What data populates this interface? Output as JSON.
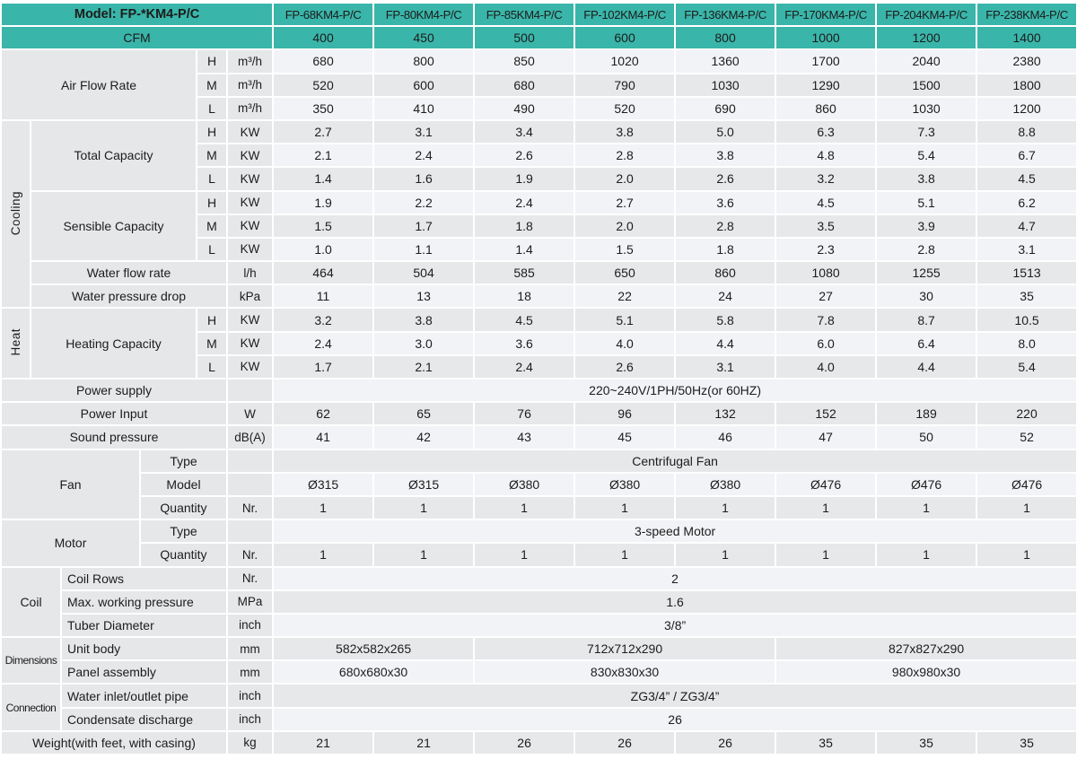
{
  "colors": {
    "header_teal": "#3ab5a9",
    "row_light": "#f1f3f6",
    "row_dark": "#e6e8ea",
    "label_gray": "#e5e7e9"
  },
  "header": {
    "model_label": "Model: FP-*KM4-P/C",
    "models": [
      "FP-68KM4-P/C",
      "FP-80KM4-P/C",
      "FP-85KM4-P/C",
      "FP-102KM4-P/C",
      "FP-136KM4-P/C",
      "FP-170KM4-P/C",
      "FP-204KM4-P/C",
      "FP-238KM4-P/C"
    ],
    "cfm_label": "CFM",
    "cfm_values": [
      "400",
      "450",
      "500",
      "600",
      "800",
      "1000",
      "1200",
      "1400"
    ]
  },
  "speed_labels": [
    "H",
    "M",
    "L"
  ],
  "units": {
    "air_flow": "m³/h",
    "capacity": "KW",
    "water_flow": "l/h",
    "pressure_drop": "kPa",
    "power": "W",
    "sound": "dB(A)",
    "quantity": "Nr.",
    "coil_rows": "Nr.",
    "working_pressure": "MPa",
    "tube": "inch",
    "dimensions": "mm",
    "connection": "inch",
    "weight": "kg"
  },
  "air_flow_rate": {
    "label": "Air Flow Rate",
    "H": [
      "680",
      "800",
      "850",
      "1020",
      "1360",
      "1700",
      "2040",
      "2380"
    ],
    "M": [
      "520",
      "600",
      "680",
      "790",
      "1030",
      "1290",
      "1500",
      "1800"
    ],
    "L": [
      "350",
      "410",
      "490",
      "520",
      "690",
      "860",
      "1030",
      "1200"
    ]
  },
  "cooling": {
    "section_label": "Cooling",
    "total_capacity": {
      "label": "Total Capacity",
      "H": [
        "2.7",
        "3.1",
        "3.4",
        "3.8",
        "5.0",
        "6.3",
        "7.3",
        "8.8"
      ],
      "M": [
        "2.1",
        "2.4",
        "2.6",
        "2.8",
        "3.8",
        "4.8",
        "5.4",
        "6.7"
      ],
      "L": [
        "1.4",
        "1.6",
        "1.9",
        "2.0",
        "2.6",
        "3.2",
        "3.8",
        "4.5"
      ]
    },
    "sensible_capacity": {
      "label": "Sensible Capacity",
      "H": [
        "1.9",
        "2.2",
        "2.4",
        "2.7",
        "3.6",
        "4.5",
        "5.1",
        "6.2"
      ],
      "M": [
        "1.5",
        "1.7",
        "1.8",
        "2.0",
        "2.8",
        "3.5",
        "3.9",
        "4.7"
      ],
      "L": [
        "1.0",
        "1.1",
        "1.4",
        "1.5",
        "1.8",
        "2.3",
        "2.8",
        "3.1"
      ]
    },
    "water_flow_rate": {
      "label": "Water flow rate",
      "values": [
        "464",
        "504",
        "585",
        "650",
        "860",
        "1080",
        "1255",
        "1513"
      ]
    },
    "water_pressure_drop": {
      "label": "Water pressure drop",
      "values": [
        "11",
        "13",
        "18",
        "22",
        "24",
        "27",
        "30",
        "35"
      ]
    }
  },
  "heat": {
    "section_label": "Heat",
    "heating_capacity": {
      "label": "Heating Capacity",
      "H": [
        "3.2",
        "3.8",
        "4.5",
        "5.1",
        "5.8",
        "7.8",
        "8.7",
        "10.5"
      ],
      "M": [
        "2.4",
        "3.0",
        "3.6",
        "4.0",
        "4.4",
        "6.0",
        "6.4",
        "8.0"
      ],
      "L": [
        "1.7",
        "2.1",
        "2.4",
        "2.6",
        "3.1",
        "4.0",
        "4.4",
        "5.4"
      ]
    }
  },
  "power_supply": {
    "label": "Power supply",
    "value": "220~240V/1PH/50Hz(or 60HZ)"
  },
  "power_input": {
    "label": "Power Input",
    "values": [
      "62",
      "65",
      "76",
      "96",
      "132",
      "152",
      "189",
      "220"
    ]
  },
  "sound_pressure": {
    "label": "Sound pressure",
    "values": [
      "41",
      "42",
      "43",
      "45",
      "46",
      "47",
      "50",
      "52"
    ]
  },
  "fan": {
    "section_label": "Fan",
    "type_label": "Type",
    "type_value": "Centrifugal Fan",
    "model_label": "Model",
    "model_values": [
      "Ø315",
      "Ø315",
      "Ø380",
      "Ø380",
      "Ø380",
      "Ø476",
      "Ø476",
      "Ø476"
    ],
    "quantity_label": "Quantity",
    "quantity_values": [
      "1",
      "1",
      "1",
      "1",
      "1",
      "1",
      "1",
      "1"
    ]
  },
  "motor": {
    "section_label": "Motor",
    "type_label": "Type",
    "type_value": "3-speed Motor",
    "quantity_label": "Quantity",
    "quantity_values": [
      "1",
      "1",
      "1",
      "1",
      "1",
      "1",
      "1",
      "1"
    ]
  },
  "coil": {
    "section_label": "Coil",
    "rows": {
      "label": "Coil Rows",
      "value": "2"
    },
    "max_working_pressure": {
      "label": "Max. working pressure",
      "value": "1.6"
    },
    "tube_diameter": {
      "label": "Tuber Diameter",
      "value": "3/8”"
    }
  },
  "dimensions": {
    "section_label": "Dimensions",
    "unit_body": {
      "label": "Unit body",
      "values": [
        "582x582x265",
        "712x712x290",
        "827x827x290"
      ]
    },
    "panel_assembly": {
      "label": "Panel assembly",
      "values": [
        "680x680x30",
        "830x830x30",
        "980x980x30"
      ]
    }
  },
  "connection": {
    "section_label": "Connection",
    "water_pipe": {
      "label": "Water inlet/outlet pipe",
      "value": "ZG3/4” / ZG3/4”"
    },
    "condensate": {
      "label": "Condensate discharge",
      "value": "26"
    }
  },
  "weight": {
    "label": "Weight(with feet, with casing)",
    "values": [
      "21",
      "21",
      "26",
      "26",
      "26",
      "35",
      "35",
      "35"
    ]
  }
}
